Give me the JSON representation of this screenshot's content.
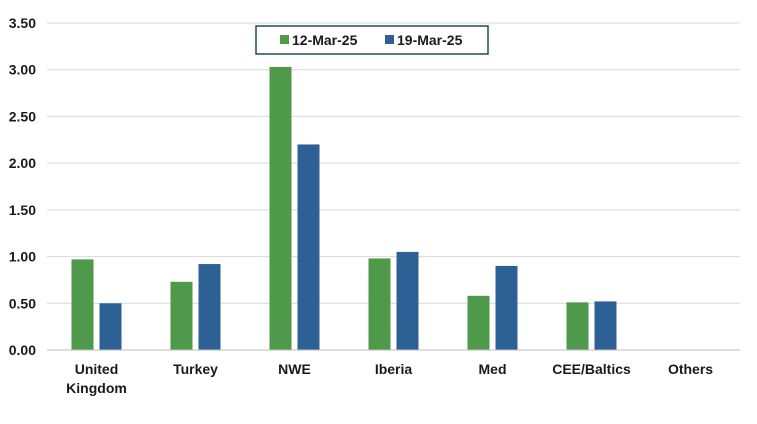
{
  "chart_data": {
    "type": "bar",
    "categories": [
      "United Kingdom",
      "Turkey",
      "NWE",
      "Iberia",
      "Med",
      "CEE/Baltics",
      "Others"
    ],
    "category_label_lines": [
      [
        "United",
        "Kingdom"
      ],
      [
        "Turkey"
      ],
      [
        "NWE"
      ],
      [
        "Iberia"
      ],
      [
        "Med"
      ],
      [
        "CEE/Baltics"
      ],
      [
        "Others"
      ]
    ],
    "series": [
      {
        "name": "12-Mar-25",
        "color": "#4e9a4a",
        "values": [
          0.97,
          0.73,
          3.03,
          0.98,
          0.58,
          0.51,
          0
        ]
      },
      {
        "name": "19-Mar-25",
        "color": "#2d6196",
        "values": [
          0.5,
          0.92,
          2.2,
          1.05,
          0.9,
          0.52,
          0
        ]
      }
    ],
    "ylim": [
      0,
      3.5
    ],
    "yticks": [
      "0.00",
      "0.50",
      "1.00",
      "1.50",
      "2.00",
      "2.50",
      "3.00",
      "3.50"
    ],
    "grid": true,
    "legend_position": "top-center",
    "title": "",
    "xlabel": "",
    "ylabel": ""
  }
}
